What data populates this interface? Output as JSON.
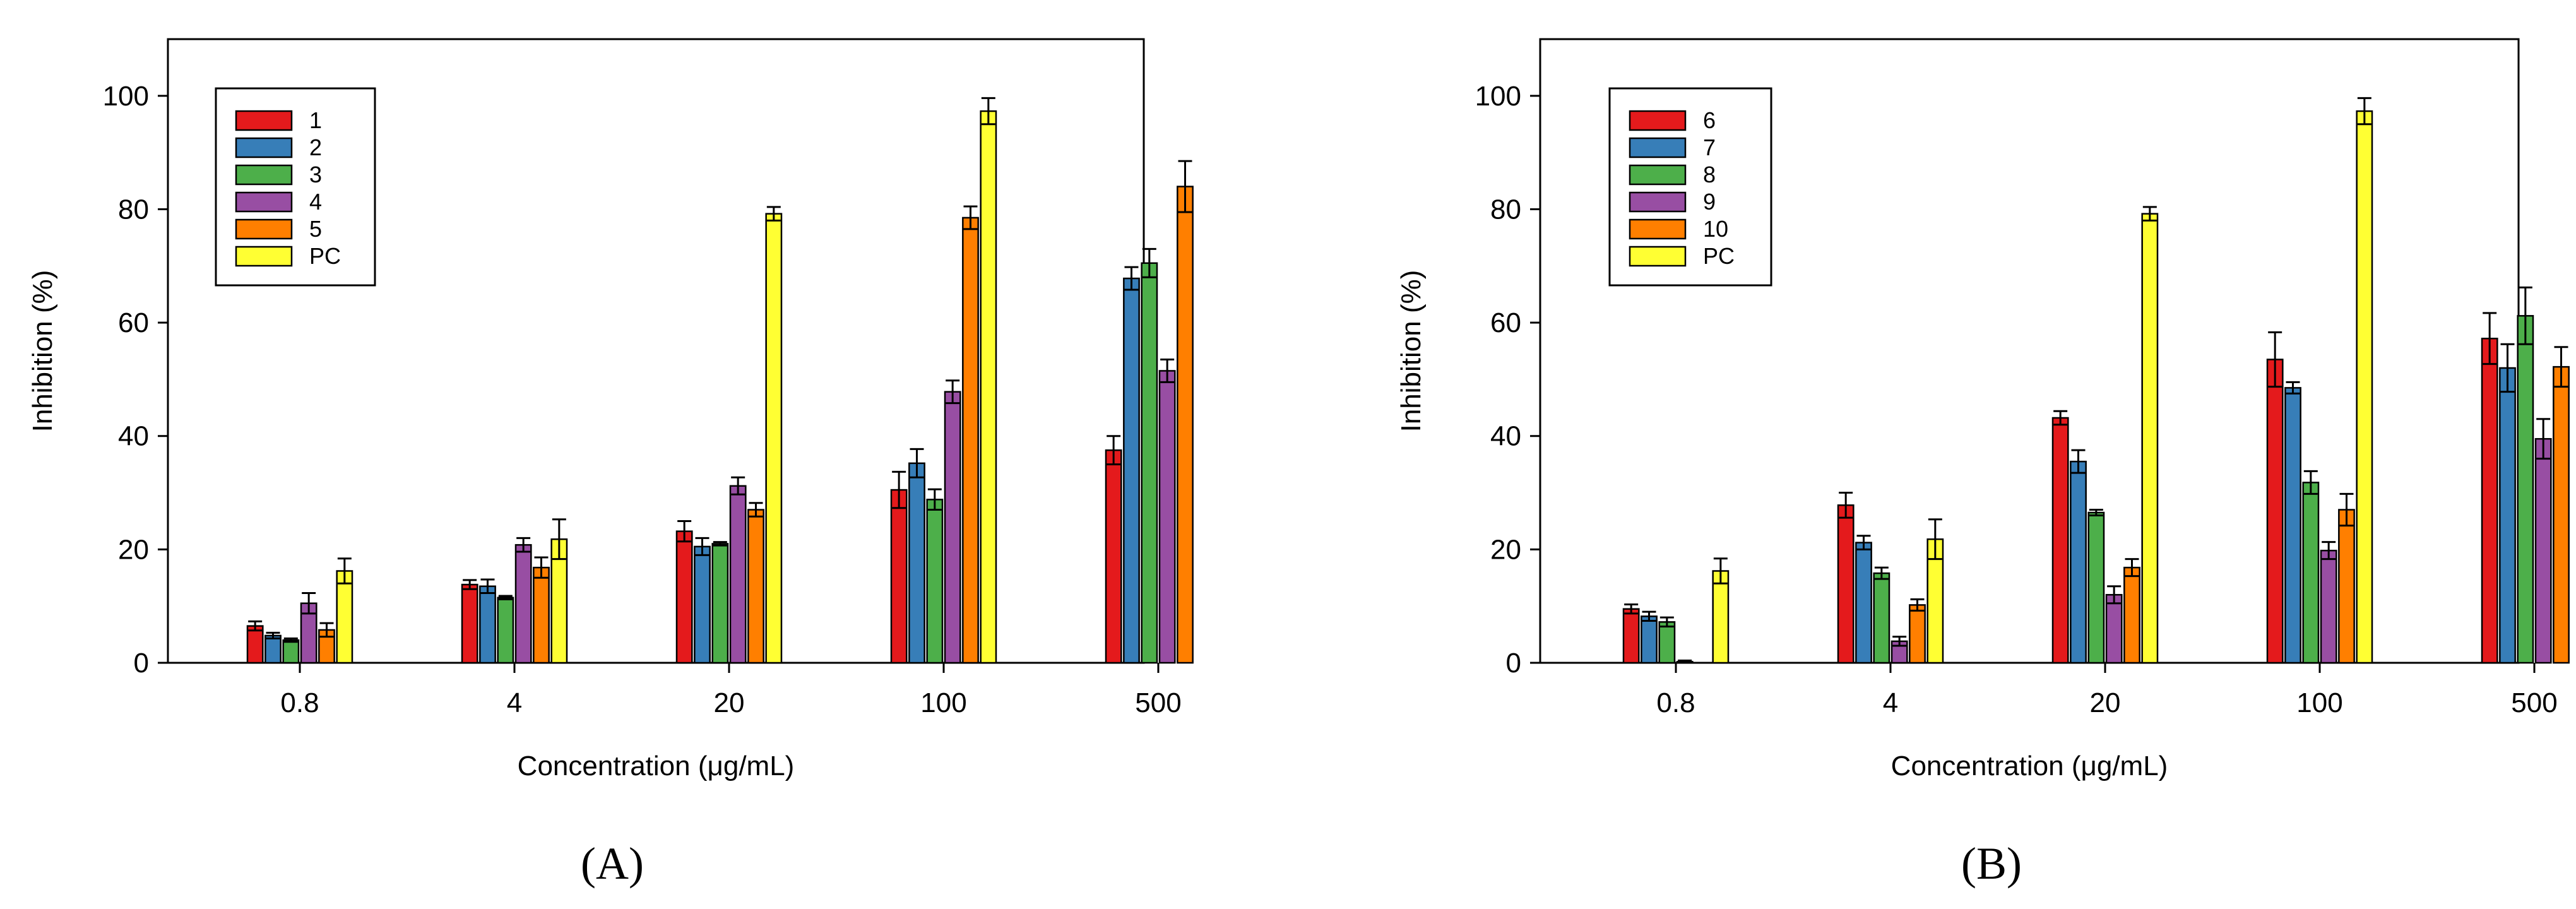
{
  "chart_data": [
    {
      "type": "bar",
      "panel_label": "(A)",
      "xlabel": "Concentration (μg/mL)",
      "ylabel": "Inhibition (%)",
      "ylim": [
        0,
        110
      ],
      "yticks": [
        0,
        20,
        40,
        60,
        80,
        100
      ],
      "categories": [
        "0.8",
        "4",
        "20",
        "100",
        "500"
      ],
      "legend_position": "top-left",
      "series": [
        {
          "name": "1",
          "color": "#e41a1c",
          "values": [
            6.5,
            13.8,
            23.2,
            30.5,
            37.5
          ],
          "errors": [
            0.8,
            0.8,
            1.8,
            3.2,
            2.5
          ]
        },
        {
          "name": "2",
          "color": "#377eb8",
          "values": [
            4.8,
            13.5,
            20.5,
            35.2,
            67.8
          ],
          "errors": [
            0.5,
            1.2,
            1.5,
            2.5,
            2.0
          ]
        },
        {
          "name": "3",
          "color": "#4daf4a",
          "values": [
            4.0,
            11.5,
            21.0,
            28.8,
            70.5
          ],
          "errors": [
            0.3,
            0.3,
            0.3,
            1.8,
            2.5
          ]
        },
        {
          "name": "4",
          "color": "#984ea3",
          "values": [
            10.5,
            20.8,
            31.2,
            47.8,
            51.5
          ],
          "errors": [
            1.8,
            1.2,
            1.5,
            2.0,
            2.0
          ]
        },
        {
          "name": "5",
          "color": "#ff7f00",
          "values": [
            5.8,
            16.8,
            27.0,
            78.5,
            84.0
          ],
          "errors": [
            1.2,
            1.8,
            1.2,
            2.0,
            4.5
          ]
        },
        {
          "name": "PC",
          "color": "#ffff33",
          "values": [
            16.2,
            21.8,
            79.2,
            97.3,
            null
          ],
          "errors": [
            2.2,
            3.5,
            1.2,
            2.3,
            null
          ]
        }
      ]
    },
    {
      "type": "bar",
      "panel_label": "(B)",
      "xlabel": "Concentration (μg/mL)",
      "ylabel": "Inhibition (%)",
      "ylim": [
        0,
        110
      ],
      "yticks": [
        0,
        20,
        40,
        60,
        80,
        100
      ],
      "categories": [
        "0.8",
        "4",
        "20",
        "100",
        "500"
      ],
      "legend_position": "top-left",
      "series": [
        {
          "name": "6",
          "color": "#e41a1c",
          "values": [
            9.5,
            27.8,
            43.2,
            53.5,
            57.2
          ],
          "errors": [
            0.8,
            2.2,
            1.2,
            4.8,
            4.5
          ]
        },
        {
          "name": "7",
          "color": "#377eb8",
          "values": [
            8.2,
            21.2,
            35.5,
            48.5,
            52.0
          ],
          "errors": [
            0.8,
            1.2,
            2.0,
            1.0,
            4.2
          ]
        },
        {
          "name": "8",
          "color": "#4daf4a",
          "values": [
            7.2,
            15.8,
            26.5,
            31.8,
            61.2
          ],
          "errors": [
            0.8,
            1.0,
            0.5,
            2.0,
            5.0
          ]
        },
        {
          "name": "9",
          "color": "#984ea3",
          "values": [
            0.2,
            3.8,
            12.0,
            19.8,
            39.5
          ],
          "errors": [
            0.2,
            0.8,
            1.5,
            1.5,
            3.5
          ]
        },
        {
          "name": "10",
          "color": "#ff7f00",
          "values": [
            null,
            10.2,
            16.8,
            27.0,
            52.2
          ],
          "errors": [
            null,
            1.0,
            1.5,
            2.8,
            3.5
          ]
        },
        {
          "name": "PC",
          "color": "#ffff33",
          "values": [
            16.2,
            21.8,
            79.2,
            97.3,
            null
          ],
          "errors": [
            2.2,
            3.5,
            1.2,
            2.3,
            null
          ]
        }
      ]
    }
  ]
}
